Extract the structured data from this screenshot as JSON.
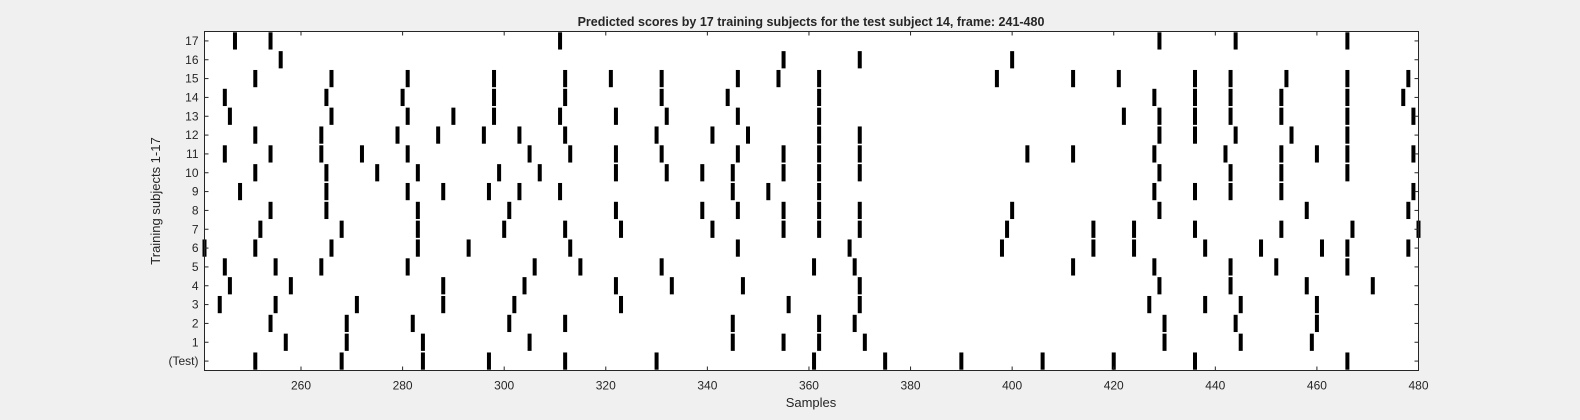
{
  "chart_data": {
    "type": "scatter",
    "title": "Predicted scores by 17 training subjects for the test subject 14, frame: 241-480",
    "xlabel": "Samples",
    "ylabel": "Training subjects 1-17",
    "xlim": [
      241,
      480
    ],
    "ylim": [
      -0.5,
      17.5
    ],
    "xticks": [
      260,
      280,
      300,
      320,
      340,
      360,
      380,
      400,
      420,
      440,
      460,
      480
    ],
    "yticks": [
      0,
      1,
      2,
      3,
      4,
      5,
      6,
      7,
      8,
      9,
      10,
      11,
      12,
      13,
      14,
      15,
      16,
      17
    ],
    "ytick_labels": [
      "(Test)",
      "1",
      "2",
      "3",
      "4",
      "5",
      "6",
      "7",
      "8",
      "9",
      "10",
      "11",
      "12",
      "13",
      "14",
      "15",
      "16",
      "17"
    ],
    "grid": false,
    "mark_color": "#000000",
    "series": [
      {
        "row": 0,
        "x": [
          251,
          268,
          284,
          297,
          312,
          330,
          361,
          375,
          390,
          406,
          420,
          436,
          466
        ]
      },
      {
        "row": 1,
        "x": [
          257,
          269,
          284,
          305,
          345,
          355,
          362,
          371,
          430,
          445,
          459
        ]
      },
      {
        "row": 2,
        "x": [
          254,
          269,
          282,
          301,
          312,
          345,
          362,
          369,
          430,
          444,
          460
        ]
      },
      {
        "row": 3,
        "x": [
          244,
          255,
          271,
          288,
          302,
          323,
          356,
          370,
          427,
          438,
          445,
          460
        ]
      },
      {
        "row": 4,
        "x": [
          246,
          258,
          288,
          304,
          322,
          333,
          347,
          370,
          429,
          443,
          458,
          471
        ]
      },
      {
        "row": 5,
        "x": [
          245,
          255,
          264,
          281,
          306,
          315,
          331,
          361,
          369,
          412,
          428,
          443,
          452,
          466
        ]
      },
      {
        "row": 6,
        "x": [
          241,
          251,
          266,
          283,
          293,
          313,
          346,
          368,
          398,
          416,
          424,
          438,
          449,
          461,
          466,
          478
        ]
      },
      {
        "row": 7,
        "x": [
          252,
          268,
          283,
          300,
          312,
          323,
          341,
          355,
          362,
          370,
          399,
          416,
          424,
          436,
          453,
          467,
          480
        ]
      },
      {
        "row": 8,
        "x": [
          254,
          265,
          283,
          301,
          322,
          339,
          346,
          355,
          362,
          370,
          400,
          429,
          458,
          478
        ]
      },
      {
        "row": 9,
        "x": [
          248,
          265,
          281,
          288,
          297,
          303,
          311,
          345,
          352,
          362,
          428,
          436,
          443,
          453,
          479
        ]
      },
      {
        "row": 10,
        "x": [
          251,
          265,
          275,
          283,
          299,
          307,
          322,
          332,
          339,
          345,
          355,
          362,
          370,
          429,
          443,
          453,
          466
        ]
      },
      {
        "row": 11,
        "x": [
          245,
          254,
          264,
          272,
          281,
          305,
          313,
          322,
          331,
          346,
          355,
          362,
          370,
          403,
          412,
          428,
          442,
          453,
          460,
          466,
          479
        ]
      },
      {
        "row": 12,
        "x": [
          251,
          264,
          279,
          287,
          296,
          303,
          312,
          330,
          341,
          348,
          362,
          370,
          429,
          436,
          444,
          455,
          466
        ]
      },
      {
        "row": 13,
        "x": [
          246,
          266,
          281,
          290,
          298,
          311,
          322,
          332,
          346,
          362,
          422,
          429,
          436,
          443,
          453,
          466,
          479
        ]
      },
      {
        "row": 14,
        "x": [
          245,
          265,
          280,
          298,
          312,
          331,
          344,
          362,
          428,
          436,
          443,
          453,
          466,
          477
        ]
      },
      {
        "row": 15,
        "x": [
          251,
          266,
          281,
          298,
          312,
          321,
          331,
          346,
          354,
          362,
          397,
          412,
          421,
          436,
          443,
          454,
          466,
          478
        ]
      },
      {
        "row": 16,
        "x": [
          256,
          355,
          370,
          400
        ]
      },
      {
        "row": 17,
        "x": [
          247,
          254,
          311,
          429,
          444,
          466
        ]
      }
    ]
  }
}
